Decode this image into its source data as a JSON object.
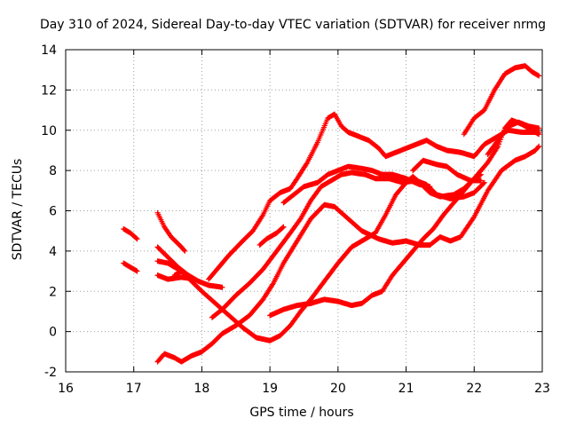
{
  "chart_data": {
    "type": "scatter",
    "title": "Day 310 of 2024, Sidereal Day-to-day VTEC variation (SDTVAR) for receiver nrmg",
    "xlabel": "GPS time / hours",
    "ylabel": "SDTVAR / TECUs",
    "xlim": [
      16,
      23
    ],
    "ylim": [
      -2,
      14
    ],
    "xticks": [
      "16",
      "17",
      "18",
      "19",
      "20",
      "21",
      "22",
      "23"
    ],
    "yticks": [
      "-2",
      "0",
      "2",
      "4",
      "6",
      "8",
      "10",
      "12",
      "14"
    ],
    "grid": true,
    "marker": "+",
    "color": "#ff0000",
    "series": [
      {
        "points": [
          [
            16.85,
            5.1
          ],
          [
            16.95,
            4.9
          ],
          [
            17.05,
            4.6
          ]
        ]
      },
      {
        "points": [
          [
            16.85,
            3.4
          ],
          [
            16.95,
            3.2
          ],
          [
            17.05,
            3.0
          ]
        ]
      },
      {
        "points": [
          [
            17.35,
            5.9
          ],
          [
            17.45,
            5.2
          ],
          [
            17.55,
            4.7
          ],
          [
            17.7,
            4.2
          ],
          [
            17.75,
            4.0
          ]
        ]
      },
      {
        "points": [
          [
            17.35,
            4.2
          ],
          [
            17.5,
            3.7
          ],
          [
            17.65,
            3.2
          ],
          [
            17.8,
            2.8
          ],
          [
            17.95,
            2.5
          ],
          [
            18.1,
            2.3
          ],
          [
            18.3,
            2.2
          ]
        ]
      },
      {
        "points": [
          [
            17.35,
            3.5
          ],
          [
            17.5,
            3.4
          ],
          [
            17.7,
            3.0
          ],
          [
            17.85,
            2.5
          ],
          [
            18.0,
            2.0
          ],
          [
            18.2,
            1.4
          ],
          [
            18.4,
            0.8
          ],
          [
            18.6,
            0.2
          ],
          [
            18.8,
            -0.3
          ],
          [
            19.0,
            -0.45
          ],
          [
            19.15,
            -0.2
          ],
          [
            19.3,
            0.3
          ],
          [
            19.45,
            1.0
          ],
          [
            19.6,
            1.6
          ],
          [
            19.8,
            2.5
          ],
          [
            20.0,
            3.4
          ],
          [
            20.2,
            4.2
          ],
          [
            20.4,
            4.6
          ],
          [
            20.55,
            4.9
          ],
          [
            20.7,
            5.8
          ],
          [
            20.85,
            6.8
          ],
          [
            21.0,
            7.4
          ],
          [
            21.1,
            7.7
          ],
          [
            21.2,
            7.4
          ],
          [
            21.35,
            6.9
          ],
          [
            21.5,
            6.7
          ],
          [
            21.7,
            6.8
          ],
          [
            21.85,
            7.1
          ],
          [
            22.0,
            7.6
          ],
          [
            22.1,
            7.8
          ]
        ]
      },
      {
        "points": [
          [
            17.35,
            2.8
          ],
          [
            17.5,
            2.6
          ],
          [
            17.7,
            2.7
          ],
          [
            17.9,
            2.6
          ]
        ]
      },
      {
        "points": [
          [
            17.35,
            -1.5
          ],
          [
            17.45,
            -1.1
          ],
          [
            17.6,
            -1.3
          ],
          [
            17.7,
            -1.5
          ],
          [
            17.85,
            -1.2
          ],
          [
            18.0,
            -1.0
          ],
          [
            18.15,
            -0.6
          ],
          [
            18.3,
            -0.1
          ],
          [
            18.5,
            0.3
          ],
          [
            18.7,
            0.8
          ],
          [
            18.9,
            1.6
          ],
          [
            19.05,
            2.4
          ],
          [
            19.2,
            3.4
          ],
          [
            19.4,
            4.5
          ],
          [
            19.6,
            5.6
          ],
          [
            19.8,
            6.3
          ],
          [
            19.95,
            6.2
          ],
          [
            20.15,
            5.6
          ],
          [
            20.35,
            5.0
          ],
          [
            20.6,
            4.6
          ],
          [
            20.8,
            4.4
          ],
          [
            21.0,
            4.5
          ],
          [
            21.2,
            4.3
          ],
          [
            21.35,
            4.3
          ],
          [
            21.5,
            4.7
          ],
          [
            21.65,
            4.5
          ],
          [
            21.8,
            4.7
          ],
          [
            22.0,
            5.7
          ],
          [
            22.2,
            7.0
          ],
          [
            22.4,
            8.0
          ],
          [
            22.6,
            8.5
          ],
          [
            22.75,
            8.7
          ],
          [
            22.9,
            9.0
          ],
          [
            22.95,
            9.2
          ]
        ]
      },
      {
        "points": [
          [
            17.6,
            2.8
          ],
          [
            17.7,
            3.0
          ],
          [
            17.8,
            2.8
          ]
        ]
      },
      {
        "points": [
          [
            18.15,
            0.7
          ],
          [
            18.3,
            1.1
          ],
          [
            18.5,
            1.8
          ],
          [
            18.7,
            2.4
          ],
          [
            18.9,
            3.1
          ],
          [
            19.1,
            4.0
          ],
          [
            19.3,
            4.9
          ],
          [
            19.45,
            5.6
          ],
          [
            19.6,
            6.5
          ],
          [
            19.75,
            7.2
          ],
          [
            19.9,
            7.5
          ],
          [
            20.05,
            7.8
          ],
          [
            20.2,
            7.9
          ],
          [
            20.4,
            7.8
          ],
          [
            20.55,
            7.6
          ],
          [
            20.75,
            7.6
          ],
          [
            20.95,
            7.4
          ],
          [
            21.15,
            7.5
          ],
          [
            21.3,
            7.3
          ],
          [
            21.45,
            6.8
          ],
          [
            21.65,
            6.6
          ],
          [
            21.85,
            6.7
          ],
          [
            22.0,
            6.9
          ],
          [
            22.15,
            7.4
          ]
        ]
      },
      {
        "points": [
          [
            18.1,
            2.6
          ],
          [
            18.2,
            3.0
          ],
          [
            18.4,
            3.8
          ],
          [
            18.6,
            4.5
          ],
          [
            18.75,
            5.0
          ],
          [
            18.9,
            5.8
          ],
          [
            19.0,
            6.5
          ],
          [
            19.15,
            6.9
          ],
          [
            19.3,
            7.1
          ],
          [
            19.4,
            7.6
          ],
          [
            19.55,
            8.4
          ],
          [
            19.7,
            9.4
          ],
          [
            19.85,
            10.6
          ],
          [
            19.95,
            10.8
          ],
          [
            20.05,
            10.2
          ],
          [
            20.15,
            9.9
          ],
          [
            20.3,
            9.7
          ],
          [
            20.45,
            9.5
          ],
          [
            20.6,
            9.1
          ],
          [
            20.7,
            8.7
          ],
          [
            20.85,
            8.9
          ],
          [
            21.0,
            9.1
          ],
          [
            21.15,
            9.3
          ],
          [
            21.3,
            9.5
          ],
          [
            21.45,
            9.2
          ],
          [
            21.6,
            9.0
          ],
          [
            21.8,
            8.9
          ],
          [
            22.0,
            8.7
          ],
          [
            22.15,
            9.3
          ],
          [
            22.3,
            9.6
          ],
          [
            22.5,
            10.0
          ],
          [
            22.7,
            9.9
          ],
          [
            22.85,
            9.9
          ],
          [
            22.95,
            9.9
          ]
        ]
      },
      {
        "points": [
          [
            18.85,
            4.3
          ],
          [
            18.95,
            4.6
          ],
          [
            19.1,
            4.9
          ],
          [
            19.2,
            5.2
          ]
        ]
      },
      {
        "points": [
          [
            19.0,
            0.8
          ],
          [
            19.2,
            1.1
          ],
          [
            19.4,
            1.3
          ],
          [
            19.6,
            1.4
          ],
          [
            19.8,
            1.6
          ],
          [
            20.0,
            1.5
          ],
          [
            20.2,
            1.3
          ],
          [
            20.35,
            1.4
          ],
          [
            20.5,
            1.8
          ],
          [
            20.65,
            2.0
          ],
          [
            20.8,
            2.8
          ],
          [
            20.95,
            3.4
          ],
          [
            21.1,
            4.0
          ],
          [
            21.25,
            4.6
          ],
          [
            21.4,
            5.1
          ],
          [
            21.55,
            5.8
          ],
          [
            21.7,
            6.4
          ],
          [
            21.85,
            7.0
          ],
          [
            22.0,
            7.6
          ],
          [
            22.1,
            8.0
          ],
          [
            22.2,
            8.4
          ],
          [
            22.35,
            9.2
          ],
          [
            22.45,
            10.1
          ],
          [
            22.55,
            10.5
          ],
          [
            22.7,
            10.3
          ],
          [
            22.85,
            10.0
          ],
          [
            22.95,
            9.8
          ]
        ]
      },
      {
        "points": [
          [
            19.2,
            6.4
          ],
          [
            19.35,
            6.8
          ],
          [
            19.5,
            7.2
          ],
          [
            19.7,
            7.4
          ],
          [
            19.85,
            7.8
          ],
          [
            20.0,
            8.0
          ],
          [
            20.15,
            8.2
          ],
          [
            20.35,
            8.1
          ],
          [
            20.5,
            8.0
          ],
          [
            20.65,
            7.8
          ],
          [
            20.8,
            7.8
          ],
          [
            21.0,
            7.6
          ],
          [
            21.2,
            7.3
          ],
          [
            21.35,
            7.2
          ]
        ]
      },
      {
        "points": [
          [
            21.1,
            8.0
          ],
          [
            21.25,
            8.5
          ],
          [
            21.45,
            8.3
          ],
          [
            21.6,
            8.2
          ],
          [
            21.75,
            7.8
          ],
          [
            21.95,
            7.5
          ],
          [
            22.1,
            7.5
          ]
        ]
      },
      {
        "points": [
          [
            21.85,
            9.8
          ],
          [
            22.0,
            10.6
          ],
          [
            22.15,
            11.0
          ],
          [
            22.3,
            12.0
          ],
          [
            22.45,
            12.8
          ],
          [
            22.6,
            13.1
          ],
          [
            22.75,
            13.2
          ],
          [
            22.85,
            12.9
          ],
          [
            22.95,
            12.7
          ]
        ]
      },
      {
        "points": [
          [
            22.2,
            8.8
          ],
          [
            22.35,
            9.5
          ],
          [
            22.5,
            10.2
          ],
          [
            22.65,
            10.4
          ],
          [
            22.8,
            10.2
          ],
          [
            22.95,
            10.1
          ]
        ]
      }
    ]
  }
}
